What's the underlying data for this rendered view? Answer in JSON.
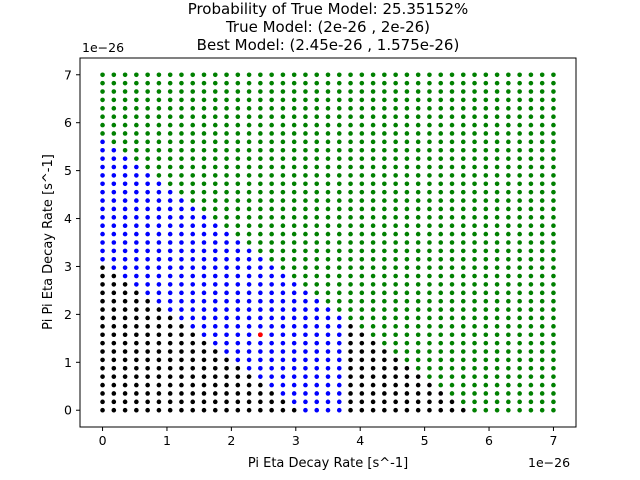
{
  "chart_data": {
    "type": "scatter",
    "title_lines": [
      "Probability of True Model: 25.35152%",
      "True Model: (2e-26 , 2e-26)",
      "Best Model: (2.45e-26 , 1.575e-26)"
    ],
    "xlabel": "Pi Eta Decay Rate [s^-1]",
    "ylabel": "Pi Pi Eta Decay Rate [s^-1]",
    "x_offset_label": "1e−26",
    "y_offset_label": "1e−26",
    "xlim": [
      -0.35,
      7.35
    ],
    "ylim": [
      -0.35,
      7.35
    ],
    "xticks": [
      0,
      1,
      2,
      3,
      4,
      5,
      6,
      7
    ],
    "yticks": [
      0,
      1,
      2,
      3,
      4,
      5,
      6,
      7
    ],
    "xtick_labels": [
      "0",
      "1",
      "2",
      "3",
      "4",
      "5",
      "6",
      "7"
    ],
    "ytick_labels": [
      "0",
      "1",
      "2",
      "3",
      "4",
      "5",
      "6",
      "7"
    ],
    "grid": false,
    "grid_values": {
      "x_start": 0,
      "x_stop": 7,
      "x_step": 0.175,
      "y_start": 0,
      "y_stop": 7,
      "y_step": 0.175
    },
    "series": [
      {
        "color": "#0000ff",
        "region": "blue band (highest-probability contour)",
        "bounds": {
          "x_min": 0,
          "x_max": 3.675,
          "y_min": 0,
          "sum_lower": 3.1,
          "sum_upper": 5.6
        }
      },
      {
        "color": "#000000",
        "region": "black band",
        "bounds": {
          "x_min": 0,
          "x_max": 5.6,
          "y_min": 0,
          "sum_lower": 0,
          "sum_upper": 5.65
        }
      },
      {
        "color": "#008000",
        "region": "green (remaining grid)"
      },
      {
        "color": "#ff0000",
        "region": "best model",
        "points": [
          [
            2.45,
            1.575
          ]
        ]
      }
    ],
    "marker_radius_note": "small dots"
  }
}
